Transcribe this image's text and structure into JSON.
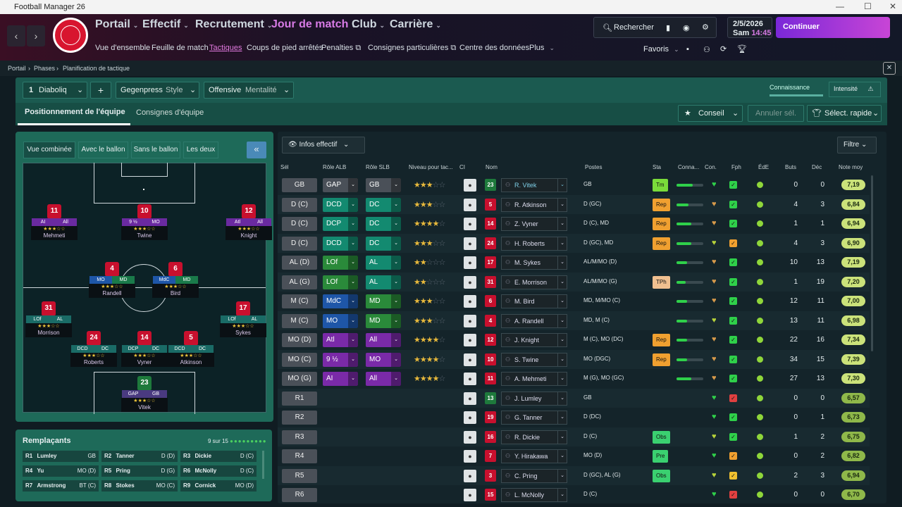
{
  "window": {
    "title": "Football Manager 26"
  },
  "nav": {
    "main": [
      "Portail",
      "Effectif",
      "Recrutement",
      "Jour de match",
      "Club",
      "Carrière"
    ],
    "sub": [
      "Vue d'ensemble",
      "Feuille de match",
      "Tactiques",
      "Coups de pied arrêtés",
      "Penalties",
      "Consignes particulières",
      "Centre des données",
      "Plus"
    ]
  },
  "topright": {
    "search": "Rechercher",
    "date": "2/5/2026",
    "day": "Sam",
    "time": "14:45",
    "continue": "Continuer",
    "favoris": "Favoris"
  },
  "breadcrumb": [
    "Portail",
    "Phases",
    "Planification de tactique"
  ],
  "tactic": {
    "number": "1",
    "name": "Diaboliq",
    "style_value": "Gegenpress",
    "style_label": "Style",
    "mentality_value": "Offensive",
    "mentality_label": "Mentalité",
    "knowledge": "Connaissance",
    "intensity": "Intensité",
    "tab1": "Positionnement de l'équipe",
    "tab2": "Consignes d'équipe",
    "advice": "Conseil",
    "undo": "Annuler sél.",
    "quick": "Sélect. rapide"
  },
  "pitch_tabs": [
    "Vue combinée",
    "Avec le ballon",
    "Sans le ballon",
    "Les deux"
  ],
  "pitch_players": [
    {
      "num": "11",
      "r1": "AI",
      "r2": "All",
      "name": "Mehmeti"
    },
    {
      "num": "10",
      "r1": "9 ½",
      "r2": "MO",
      "name": "Twine"
    },
    {
      "num": "12",
      "r1": "Atl",
      "r2": "All",
      "name": "Knight"
    },
    {
      "num": "4",
      "r1": "MO",
      "r2": "MD",
      "name": "Randell"
    },
    {
      "num": "6",
      "r1": "MdC",
      "r2": "MD",
      "name": "Bird"
    },
    {
      "num": "31",
      "r1": "LOf",
      "r2": "AL",
      "name": "Morrison"
    },
    {
      "num": "17",
      "r1": "LOf",
      "r2": "AL",
      "name": "Sykes"
    },
    {
      "num": "24",
      "r1": "DCD",
      "r2": "DC",
      "name": "Roberts"
    },
    {
      "num": "14",
      "r1": "DCP",
      "r2": "DC",
      "name": "Vyner"
    },
    {
      "num": "5",
      "r1": "DCD",
      "r2": "DC",
      "name": "Atkinson"
    },
    {
      "num": "23",
      "r1": "GAP",
      "r2": "GB",
      "name": "Vitek"
    }
  ],
  "subs": {
    "title": "Remplaçants",
    "count": "9 sur 15",
    "items": [
      {
        "slot": "R1",
        "name": "Lumley",
        "pos": "GB"
      },
      {
        "slot": "R2",
        "name": "Tanner",
        "pos": "D (D)"
      },
      {
        "slot": "R3",
        "name": "Dickie",
        "pos": "D (C)"
      },
      {
        "slot": "R4",
        "name": "Yu",
        "pos": "MO (D)"
      },
      {
        "slot": "R5",
        "name": "Pring",
        "pos": "D (G)"
      },
      {
        "slot": "R6",
        "name": "McNolly",
        "pos": "D (C)"
      },
      {
        "slot": "R7",
        "name": "Armstrong",
        "pos": "BT (C)"
      },
      {
        "slot": "R8",
        "name": "Stokes",
        "pos": "MO (C)"
      },
      {
        "slot": "R9",
        "name": "Cornick",
        "pos": "MO (D)"
      }
    ]
  },
  "table": {
    "info_btn": "Infos effectif",
    "filter": "Filtre",
    "headers": [
      "Sél",
      "Rôle ALB",
      "Rôle SLB",
      "Niveau pour tac...",
      "CI",
      "Nom",
      "Postes",
      "Sta",
      "Conna...",
      "Con.",
      "Fph",
      "ÉdE",
      "Buts",
      "Déc",
      "Note moy"
    ],
    "rows": [
      {
        "sel": "GB",
        "alb": "GAP",
        "slb": "GB",
        "c1": "#4a5058",
        "c2": "#4a5058",
        "stars": 3,
        "num": "23",
        "name": "R. Vitek",
        "pos": "GB",
        "sta": "Tm",
        "stac": "#7adc3a",
        "con": 60,
        "goals": "0",
        "ast": "0",
        "note": "7,19",
        "heart": "#2fd04a",
        "fph": "#2fd04a"
      },
      {
        "sel": "D (C)",
        "alb": "DCD",
        "slb": "DC",
        "c1": "#138a70",
        "c2": "#138a70",
        "stars": 3,
        "num": "5",
        "name": "R. Atkinson",
        "pos": "D (GC)",
        "sta": "Rep",
        "stac": "#f0a030",
        "con": 45,
        "goals": "4",
        "ast": "3",
        "note": "6,84",
        "heart": "#d89a4a",
        "fph": "#2fd04a"
      },
      {
        "sel": "D (C)",
        "alb": "DCP",
        "slb": "DC",
        "c1": "#138a70",
        "c2": "#138a70",
        "stars": 3.5,
        "num": "14",
        "name": "Z. Vyner",
        "pos": "D (C), MD",
        "sta": "Rep",
        "stac": "#f0a030",
        "con": 55,
        "goals": "1",
        "ast": "1",
        "note": "6,94",
        "heart": "#d89a4a",
        "fph": "#2fd04a"
      },
      {
        "sel": "D (C)",
        "alb": "DCD",
        "slb": "DC",
        "c1": "#138a70",
        "c2": "#138a70",
        "stars": 3,
        "num": "24",
        "name": "H. Roberts",
        "pos": "D (GC), MD",
        "sta": "Rep",
        "stac": "#f0a030",
        "con": 55,
        "goals": "4",
        "ast": "3",
        "note": "6,90",
        "heart": "#b8d43a",
        "fph": "#f0a030"
      },
      {
        "sel": "AL (D)",
        "alb": "LOf",
        "slb": "AL",
        "c1": "#2a8a3a",
        "c2": "#138a70",
        "stars": 1.5,
        "num": "17",
        "name": "M. Sykes",
        "pos": "AL/M/MO (D)",
        "sta": "",
        "stac": "",
        "con": 40,
        "goals": "10",
        "ast": "13",
        "note": "7,19",
        "heart": "#d89a4a",
        "fph": "#2fd04a"
      },
      {
        "sel": "AL (G)",
        "alb": "LOf",
        "slb": "AL",
        "c1": "#2a8a3a",
        "c2": "#138a70",
        "stars": 2,
        "num": "31",
        "name": "E. Morrison",
        "pos": "AL/M/MO (G)",
        "sta": "TPh",
        "stac": "#f0c090",
        "con": 35,
        "goals": "1",
        "ast": "19",
        "note": "7,20",
        "heart": "#d89a4a",
        "fph": "#2fd04a"
      },
      {
        "sel": "M (C)",
        "alb": "MdC",
        "slb": "MD",
        "c1": "#1e56a8",
        "c2": "#2a8a3a",
        "stars": 3,
        "num": "6",
        "name": "M. Bird",
        "pos": "MD, M/MO (C)",
        "sta": "",
        "stac": "",
        "con": 40,
        "goals": "12",
        "ast": "11",
        "note": "7,00",
        "heart": "#d89a4a",
        "fph": "#2fd04a"
      },
      {
        "sel": "M (C)",
        "alb": "MO",
        "slb": "MD",
        "c1": "#1e56a8",
        "c2": "#2a8a3a",
        "stars": 2.5,
        "num": "4",
        "name": "A. Randell",
        "pos": "MD, M (C)",
        "sta": "",
        "stac": "",
        "con": 40,
        "goals": "13",
        "ast": "11",
        "note": "6,98",
        "heart": "#b8d43a",
        "fph": "#2fd04a"
      },
      {
        "sel": "MO (D)",
        "alb": "Atl",
        "slb": "All",
        "c1": "#7a2aa8",
        "c2": "#7a2aa8",
        "stars": 3.5,
        "num": "12",
        "name": "J. Knight",
        "pos": "M (C), MO (DC)",
        "sta": "Rep",
        "stac": "#f0a030",
        "con": 40,
        "goals": "22",
        "ast": "16",
        "note": "7,34",
        "heart": "#d89a4a",
        "fph": "#2fd04a"
      },
      {
        "sel": "MO (C)",
        "alb": "9 ½",
        "slb": "MO",
        "c1": "#7a2aa8",
        "c2": "#7a2aa8",
        "stars": 3.5,
        "num": "10",
        "name": "S. Twine",
        "pos": "MO (DGC)",
        "sta": "Rep",
        "stac": "#f0a030",
        "con": 40,
        "goals": "34",
        "ast": "15",
        "note": "7,39",
        "heart": "#d89a4a",
        "fph": "#2fd04a"
      },
      {
        "sel": "MO (G)",
        "alb": "AI",
        "slb": "All",
        "c1": "#7a2aa8",
        "c2": "#7a2aa8",
        "stars": 3.5,
        "num": "11",
        "name": "A. Mehmeti",
        "pos": "M (G), MO (GC)",
        "sta": "",
        "stac": "",
        "con": 55,
        "goals": "27",
        "ast": "13",
        "note": "7,30",
        "heart": "#d89a4a",
        "fph": "#2fd04a"
      },
      {
        "sel": "R1",
        "alb": "",
        "slb": "",
        "stars": 0,
        "num": "13",
        "name": "J. Lumley",
        "pos": "GB",
        "sta": "",
        "stac": "",
        "con": 0,
        "goals": "0",
        "ast": "0",
        "note": "6,57",
        "heart": "#2fd04a",
        "fph": "#e04040"
      },
      {
        "sel": "R2",
        "alb": "",
        "slb": "",
        "stars": 0,
        "num": "19",
        "name": "G. Tanner",
        "pos": "D (DC)",
        "sta": "",
        "stac": "",
        "con": 0,
        "goals": "0",
        "ast": "1",
        "note": "6,73",
        "heart": "#2fd04a",
        "fph": "#2fd04a"
      },
      {
        "sel": "R3",
        "alb": "",
        "slb": "",
        "stars": 0,
        "num": "16",
        "name": "R. Dickie",
        "pos": "D (C)",
        "sta": "Obs",
        "stac": "#3ad070",
        "con": 0,
        "goals": "1",
        "ast": "2",
        "note": "6,75",
        "heart": "#b8d43a",
        "fph": "#2fd04a"
      },
      {
        "sel": "R4",
        "alb": "",
        "slb": "",
        "stars": 0,
        "num": "7",
        "name": "Y. Hirakawa",
        "pos": "MO (D)",
        "sta": "Pre",
        "stac": "#3ad070",
        "con": 0,
        "goals": "0",
        "ast": "2",
        "note": "6,82",
        "heart": "#2fd04a",
        "fph": "#f0a030"
      },
      {
        "sel": "R5",
        "alb": "",
        "slb": "",
        "stars": 0,
        "num": "3",
        "name": "C. Pring",
        "pos": "D (GC), AL (G)",
        "sta": "Obs",
        "stac": "#3ad070",
        "con": 0,
        "goals": "2",
        "ast": "3",
        "note": "6,94",
        "heart": "#b8d43a",
        "fph": "#f0c030"
      },
      {
        "sel": "R6",
        "alb": "",
        "slb": "",
        "stars": 0,
        "num": "15",
        "name": "L. McNolly",
        "pos": "D (C)",
        "sta": "",
        "stac": "",
        "con": 0,
        "goals": "0",
        "ast": "0",
        "note": "6,70",
        "heart": "#2fd04a",
        "fph": "#e04040"
      }
    ]
  }
}
